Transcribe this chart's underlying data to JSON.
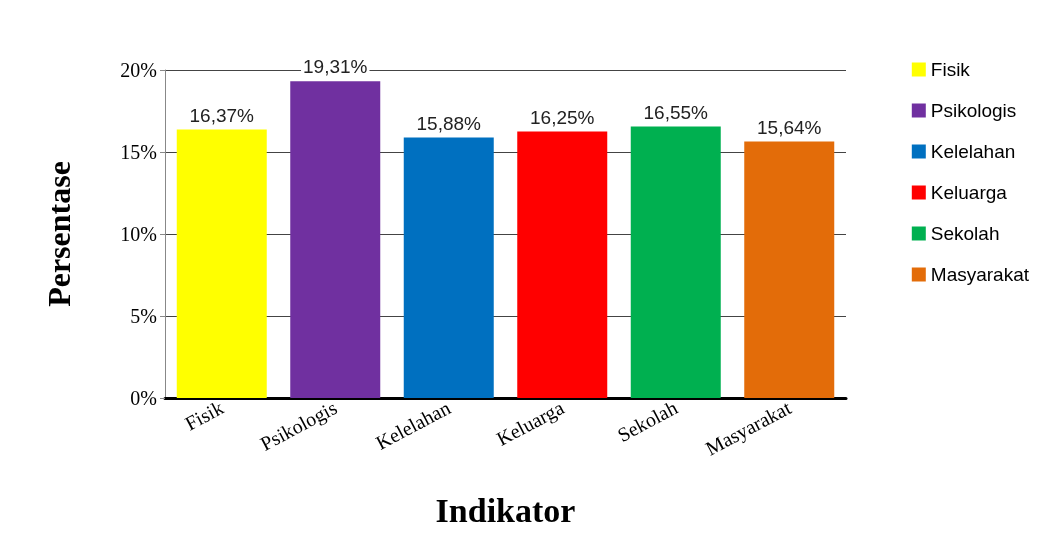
{
  "chart_data": {
    "type": "bar",
    "xlabel": "Indikator",
    "ylabel": "Persentase",
    "categories": [
      "Fisik",
      "Psikologis",
      "Kelelahan",
      "Keluarga",
      "Sekolah",
      "Masyarakat"
    ],
    "series": [
      {
        "name": "Fisik",
        "color": "#ffff00",
        "values": [
          16.37,
          null,
          null,
          null,
          null,
          null
        ],
        "value_labels": [
          "16,37%",
          null,
          null,
          null,
          null,
          null
        ]
      },
      {
        "name": "Psikologis",
        "color": "#7030a0",
        "values": [
          null,
          19.31,
          null,
          null,
          null,
          null
        ],
        "value_labels": [
          null,
          "19,31%",
          null,
          null,
          null,
          null
        ]
      },
      {
        "name": "Kelelahan",
        "color": "#0070c0",
        "values": [
          null,
          null,
          15.88,
          null,
          null,
          null
        ],
        "value_labels": [
          null,
          null,
          "15,88%",
          null,
          null,
          null
        ]
      },
      {
        "name": "Keluarga",
        "color": "#ff0000",
        "values": [
          null,
          null,
          null,
          16.25,
          null,
          null
        ],
        "value_labels": [
          null,
          null,
          null,
          "16,25%",
          null,
          null
        ]
      },
      {
        "name": "Sekolah",
        "color": "#00b050",
        "values": [
          null,
          null,
          null,
          null,
          16.55,
          null
        ],
        "value_labels": [
          null,
          null,
          null,
          null,
          "16,55%",
          null
        ]
      },
      {
        "name": "Masyarakat",
        "color": "#e36c09",
        "values": [
          null,
          null,
          null,
          null,
          null,
          15.64
        ],
        "value_labels": [
          null,
          null,
          null,
          null,
          null,
          "15,64%"
        ]
      }
    ],
    "ylim": [
      0,
      20
    ],
    "yticks": [
      {
        "value": 0,
        "label": "0%"
      },
      {
        "value": 5,
        "label": "5%"
      },
      {
        "value": 10,
        "label": "10%"
      },
      {
        "value": 15,
        "label": "15%"
      },
      {
        "value": 20,
        "label": "20%"
      }
    ],
    "grid": "y",
    "legend": "right"
  }
}
